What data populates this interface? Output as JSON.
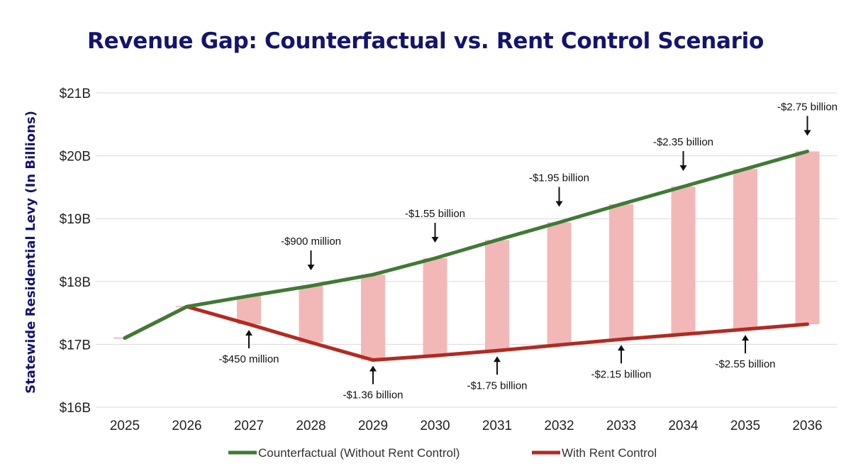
{
  "chart_data": {
    "type": "line",
    "title": "Revenue Gap: Counterfactual vs. Rent Control Scenario",
    "xlabel": "",
    "ylabel": "Statewide Residential Levy (In Billions)",
    "categories": [
      "2025",
      "2026",
      "2027",
      "2028",
      "2029",
      "2030",
      "2031",
      "2032",
      "2033",
      "2034",
      "2035",
      "2036"
    ],
    "ylim": [
      16,
      21
    ],
    "yticks": [
      16,
      17,
      18,
      19,
      20,
      21
    ],
    "ytick_labels": [
      "$16B",
      "$17B",
      "$18B",
      "$19B",
      "$20B",
      "$21B"
    ],
    "grid": true,
    "series": [
      {
        "name": "Counterfactual (Without Rent Control)",
        "color": "#3f7a35",
        "values": [
          17.1,
          17.6,
          17.77,
          17.93,
          18.11,
          18.37,
          18.66,
          18.94,
          19.23,
          19.51,
          19.79,
          20.07
        ]
      },
      {
        "name": "With Rent Control",
        "color": "#b22a22",
        "values": [
          17.1,
          17.6,
          17.32,
          17.03,
          16.75,
          16.82,
          16.9,
          16.99,
          17.08,
          17.16,
          17.24,
          17.32
        ]
      }
    ],
    "gap_bars": {
      "color": "#f2b8b8",
      "categories": [
        "2027",
        "2028",
        "2029",
        "2030",
        "2031",
        "2032",
        "2033",
        "2034",
        "2035",
        "2036"
      ]
    },
    "annotations": [
      {
        "x": "2027",
        "text": "-$450 million",
        "position": "below",
        "y": 17.32
      },
      {
        "x": "2028",
        "text": "-$900 million",
        "position": "above",
        "y": 17.93
      },
      {
        "x": "2029",
        "text": "-$1.36 billion",
        "position": "below",
        "y": 16.75
      },
      {
        "x": "2030",
        "text": "-$1.55 billion",
        "position": "above",
        "y": 18.37
      },
      {
        "x": "2031",
        "text": "-$1.75 billion",
        "position": "below",
        "y": 16.9
      },
      {
        "x": "2032",
        "text": "-$1.95 billion",
        "position": "above",
        "y": 18.94
      },
      {
        "x": "2033",
        "text": "-$2.15 billion",
        "position": "below",
        "y": 17.08
      },
      {
        "x": "2034",
        "text": "-$2.35 billion",
        "position": "above",
        "y": 19.51
      },
      {
        "x": "2035",
        "text": "-$2.55 billion",
        "position": "below",
        "y": 17.24
      },
      {
        "x": "2036",
        "text": "-$2.75 billion",
        "position": "above",
        "y": 20.07
      }
    ],
    "legend": "bottom"
  }
}
